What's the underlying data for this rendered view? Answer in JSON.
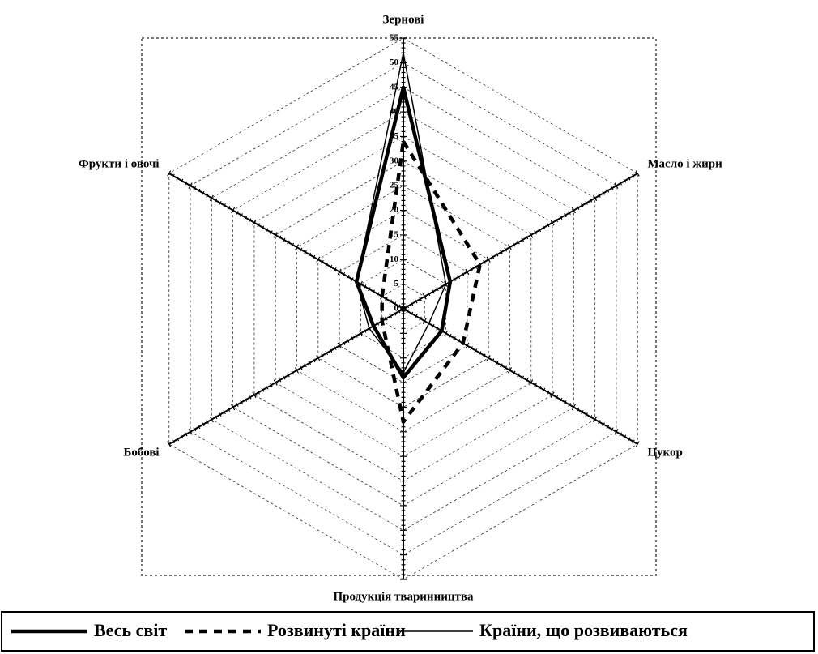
{
  "chart_data": {
    "type": "radar",
    "categories": [
      "Зернові",
      "Масло і жири",
      "Цукор",
      "Продукція тваринництва",
      "Бобові",
      "Фрукти і овочі"
    ],
    "series": [
      {
        "name": "Весь світ",
        "color": "#000000",
        "style": "thick",
        "values": [
          45,
          11,
          9,
          14,
          7,
          11
        ]
      },
      {
        "name": "Розвинуті країни",
        "color": "#000000",
        "style": "dashed",
        "values": [
          34,
          18,
          14,
          23,
          5,
          5
        ]
      },
      {
        "name": "Країни, що розвиваються",
        "color": "#000000",
        "style": "thin",
        "values": [
          52,
          10,
          6,
          13,
          8,
          11
        ]
      }
    ],
    "ylim": [
      0,
      55
    ],
    "yticks": [
      0,
      5,
      10,
      15,
      20,
      25,
      30,
      35,
      40,
      45,
      50,
      55
    ],
    "grid": true,
    "legend": "bottom"
  }
}
